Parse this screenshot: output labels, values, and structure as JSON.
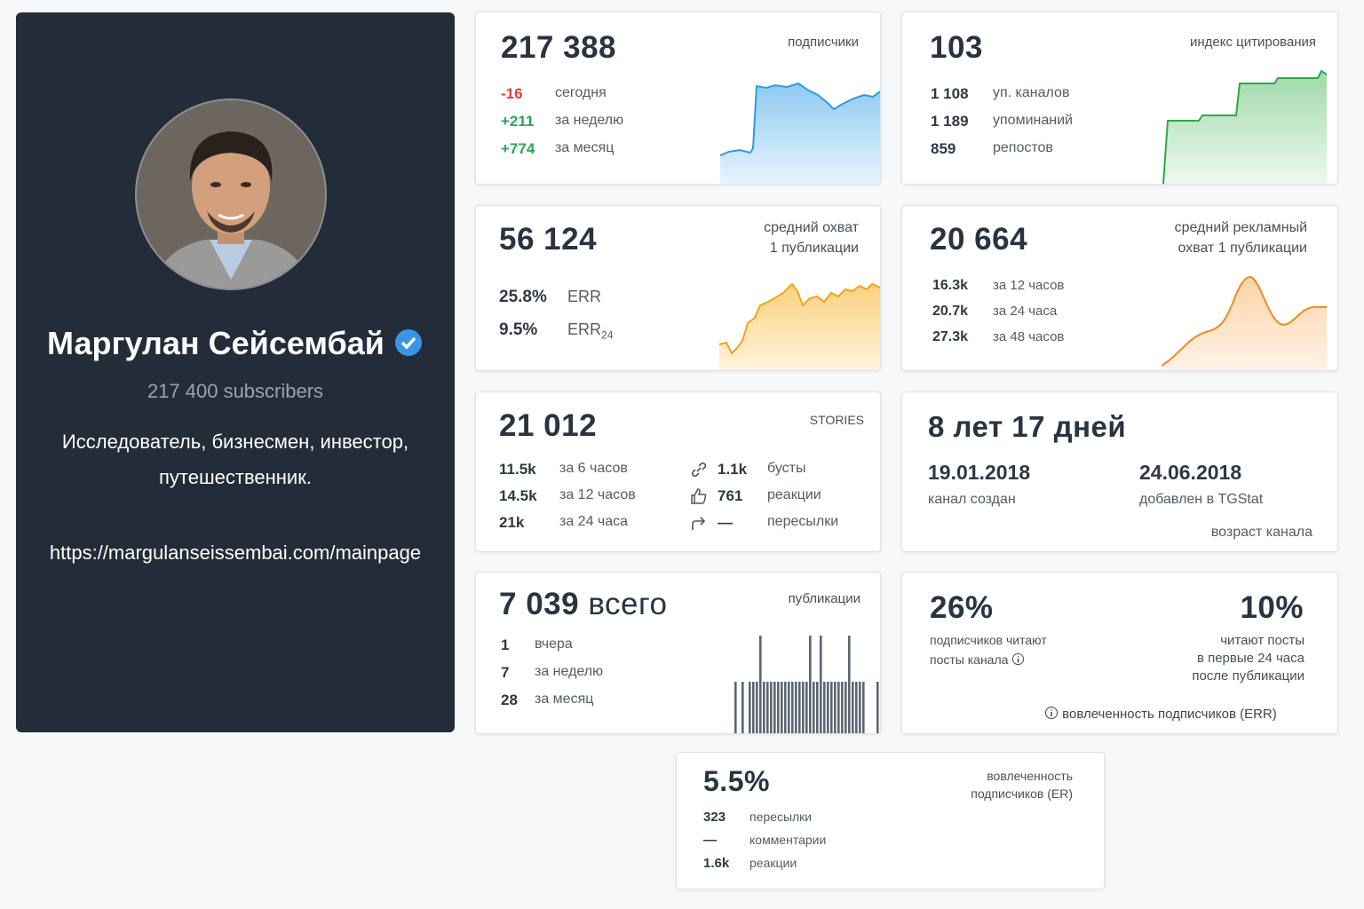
{
  "profile": {
    "name": "Маргулан Сейсембай",
    "subscribers": "217 400 subscribers",
    "description": "Исследователь, бизнесмен, инвестор, путешественник.",
    "url": "https://margulanseissembai.com/mainpage"
  },
  "subscribers": {
    "value": "217 388",
    "label": "подписчики",
    "rows": [
      {
        "value": "-16",
        "label": "сегодня"
      },
      {
        "value": "+211",
        "label": "за неделю"
      },
      {
        "value": "+774",
        "label": "за месяц"
      }
    ]
  },
  "citation": {
    "value": "103",
    "label": "индекс цитирования",
    "rows": [
      {
        "value": "1 108",
        "label": "уп. каналов"
      },
      {
        "value": "1 189",
        "label": "упоминаний"
      },
      {
        "value": "859",
        "label": "репостов"
      }
    ]
  },
  "reach": {
    "value": "56 124",
    "label": [
      "средний охват",
      "1 публикации"
    ],
    "rows": [
      {
        "value": "25.8%",
        "label": "ERR"
      },
      {
        "value": "9.5%",
        "label": "ERR",
        "sub": "24"
      }
    ]
  },
  "ad_reach": {
    "value": "20 664",
    "label": [
      "средний рекламный",
      "охват 1 публикации"
    ],
    "rows": [
      {
        "value": "16.3k",
        "label": "за 12 часов"
      },
      {
        "value": "20.7k",
        "label": "за 24 часа"
      },
      {
        "value": "27.3k",
        "label": "за 48 часов"
      }
    ]
  },
  "stories": {
    "value": "21 012",
    "label": "STORIES",
    "views": [
      {
        "value": "11.5k",
        "label": "за 6 часов"
      },
      {
        "value": "14.5k",
        "label": "за 12 часов"
      },
      {
        "value": "21k",
        "label": "за 24 часа"
      }
    ],
    "activity": [
      {
        "value": "1.1k",
        "label": "бусты"
      },
      {
        "value": "761",
        "label": "реакции"
      },
      {
        "value": "—",
        "label": "пересылки"
      }
    ]
  },
  "age": {
    "value": "8 лет 17 дней",
    "created": {
      "date": "19.01.2018",
      "label": "канал создан"
    },
    "added": {
      "date": "24.06.2018",
      "label": "добавлен в TGStat"
    },
    "footer": "возраст канала"
  },
  "posts": {
    "value": "7 039",
    "suffix": "всего",
    "label": "публикации",
    "rows": [
      {
        "value": "1",
        "label": "вчера"
      },
      {
        "value": "7",
        "label": "за неделю"
      },
      {
        "value": "28",
        "label": "за месяц"
      }
    ]
  },
  "err": {
    "left": {
      "value": "26%",
      "label": [
        "подписчиков читают",
        "посты канала"
      ]
    },
    "right": {
      "value": "10%",
      "label": [
        "читают посты",
        "в первые 24 часа",
        "после публикации"
      ]
    },
    "footer": "вовлеченность подписчиков (ERR)"
  },
  "er": {
    "value": "5.5%",
    "label": [
      "вовлеченность",
      "подписчиков (ER)"
    ],
    "rows": [
      {
        "value": "323",
        "label": "пересылки"
      },
      {
        "value": "—",
        "label": "комментарии"
      },
      {
        "value": "1.6k",
        "label": "реакции"
      }
    ]
  }
}
